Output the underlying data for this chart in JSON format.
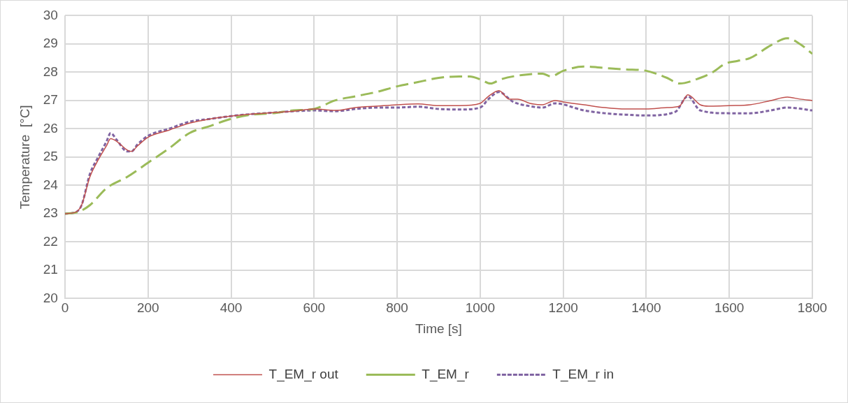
{
  "chart_data": {
    "type": "line",
    "xlabel": "Time [s]",
    "ylabel": "Temperature  [°C]",
    "xlim": [
      0,
      1800
    ],
    "xticks": [
      0,
      200,
      400,
      600,
      800,
      1000,
      1200,
      1400,
      1600,
      1800
    ],
    "ylim": [
      20,
      30
    ],
    "yticks": [
      20,
      21,
      22,
      23,
      24,
      25,
      26,
      27,
      28,
      29,
      30
    ],
    "grid": true,
    "legend": "bottom",
    "marker": "none",
    "series": [
      {
        "name": "T_EM_r out",
        "color": "#c0504d",
        "line_style": "solid",
        "x": [
          0,
          25,
          40,
          60,
          80,
          100,
          110,
          125,
          150,
          160,
          175,
          200,
          250,
          300,
          350,
          400,
          450,
          500,
          550,
          600,
          650,
          700,
          750,
          800,
          850,
          900,
          950,
          1000,
          1020,
          1045,
          1070,
          1090,
          1120,
          1150,
          1180,
          1200,
          1250,
          1300,
          1350,
          1400,
          1450,
          1480,
          1500,
          1530,
          1550,
          1600,
          1650,
          1700,
          1740,
          1770,
          1800
        ],
        "values": [
          23,
          23.05,
          23.3,
          24.3,
          24.9,
          25.4,
          25.65,
          25.55,
          25.25,
          25.2,
          25.4,
          25.7,
          25.95,
          26.2,
          26.35,
          26.45,
          26.52,
          26.57,
          26.62,
          26.7,
          26.65,
          26.75,
          26.8,
          26.85,
          26.88,
          26.82,
          26.82,
          26.9,
          27.15,
          27.35,
          27.05,
          27.05,
          26.9,
          26.85,
          27.0,
          26.95,
          26.85,
          26.75,
          26.7,
          26.7,
          26.75,
          26.8,
          27.2,
          26.85,
          26.8,
          26.82,
          26.85,
          27.0,
          27.12,
          27.05,
          27.0
        ]
      },
      {
        "name": "T_EM_r",
        "color": "#9bbb59",
        "line_style": "dashed",
        "x": [
          0,
          30,
          60,
          100,
          150,
          200,
          250,
          300,
          350,
          400,
          450,
          500,
          550,
          600,
          650,
          700,
          750,
          800,
          850,
          900,
          950,
          975,
          1000,
          1025,
          1050,
          1100,
          1150,
          1170,
          1200,
          1250,
          1300,
          1350,
          1400,
          1450,
          1480,
          1530,
          1560,
          1590,
          1620,
          1650,
          1700,
          1740,
          1770,
          1800
        ],
        "values": [
          23,
          23.05,
          23.3,
          23.9,
          24.3,
          24.8,
          25.3,
          25.85,
          26.1,
          26.35,
          26.5,
          26.55,
          26.65,
          26.7,
          27.0,
          27.15,
          27.3,
          27.5,
          27.65,
          27.8,
          27.85,
          27.85,
          27.75,
          27.6,
          27.75,
          27.9,
          27.95,
          27.85,
          28.05,
          28.2,
          28.15,
          28.1,
          28.05,
          27.8,
          27.6,
          27.8,
          28.0,
          28.3,
          28.4,
          28.5,
          28.95,
          29.2,
          29.0,
          28.65
        ]
      },
      {
        "name": "T_EM_r in",
        "color": "#8064a2",
        "line_style": "dotted",
        "x": [
          0,
          25,
          40,
          60,
          80,
          100,
          110,
          125,
          150,
          160,
          175,
          200,
          250,
          300,
          350,
          400,
          450,
          500,
          550,
          600,
          650,
          700,
          750,
          800,
          850,
          900,
          950,
          1000,
          1020,
          1045,
          1080,
          1120,
          1150,
          1180,
          1250,
          1300,
          1350,
          1400,
          1470,
          1500,
          1530,
          1600,
          1650,
          1700,
          1740,
          1800
        ],
        "values": [
          23,
          23.05,
          23.3,
          24.4,
          25.0,
          25.55,
          25.85,
          25.6,
          25.2,
          25.2,
          25.45,
          25.75,
          26.0,
          26.25,
          26.35,
          26.45,
          26.52,
          26.57,
          26.62,
          26.65,
          26.62,
          26.7,
          26.75,
          26.75,
          26.78,
          26.7,
          26.68,
          26.75,
          27.05,
          27.3,
          26.95,
          26.8,
          26.75,
          26.9,
          26.65,
          26.55,
          26.5,
          26.47,
          26.6,
          27.15,
          26.65,
          26.55,
          26.55,
          26.65,
          26.75,
          26.65
        ]
      }
    ]
  }
}
